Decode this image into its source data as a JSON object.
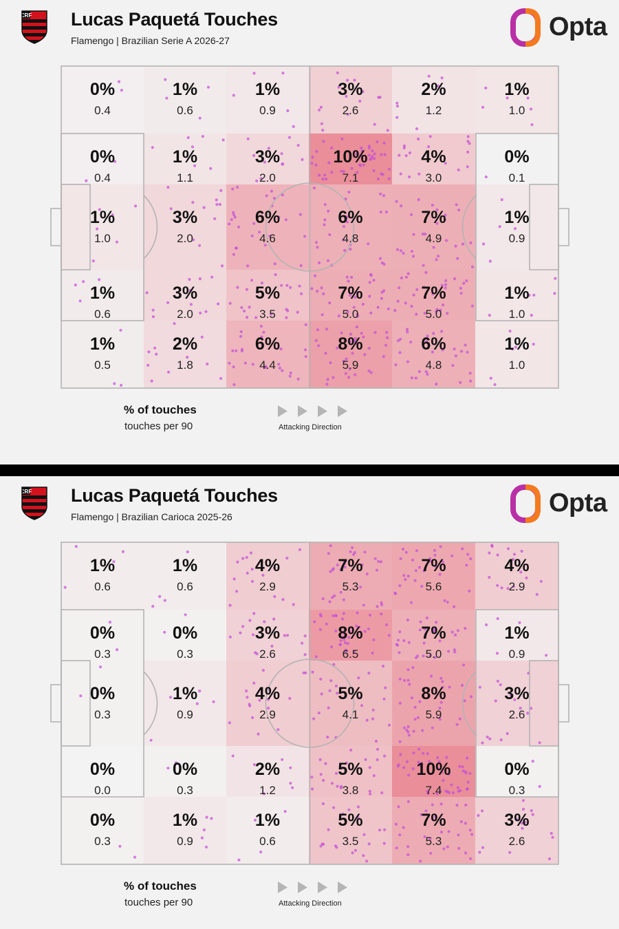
{
  "brand": {
    "logo_text": "Opta"
  },
  "legend": {
    "pct_label": "% of touches",
    "per90_label": "touches per 90",
    "direction_label": "Attacking Direction"
  },
  "colors": {
    "heat_max": "#e8727f",
    "dot": "#c34fd6",
    "pitch_line": "#b3b3b3",
    "crest_red": "#d3121d",
    "crest_black": "#111111",
    "logo_orange": "#f47a1f",
    "logo_magenta": "#b92fa6"
  },
  "panels": [
    {
      "title": "Lucas Paquetá Touches",
      "subtitle": "Flamengo | Brazilian Serie A 2026-27"
    },
    {
      "title": "Lucas Paquetá Touches",
      "subtitle": "Flamengo | Brazilian Carioca 2025-26"
    }
  ],
  "chart_data": [
    {
      "type": "heatmap",
      "title": "Lucas Paquetá Touches",
      "subtitle": "Flamengo | Brazilian Serie A 2026-27",
      "grid": "6 columns x 5 rows of pitch zones, attacking left to right",
      "pct": [
        [
          "0%",
          "1%",
          "1%",
          "3%",
          "2%",
          "1%"
        ],
        [
          "0%",
          "1%",
          "3%",
          "10%",
          "4%",
          "0%"
        ],
        [
          "1%",
          "3%",
          "6%",
          "6%",
          "7%",
          "1%"
        ],
        [
          "1%",
          "3%",
          "5%",
          "7%",
          "7%",
          "1%"
        ],
        [
          "1%",
          "2%",
          "6%",
          "8%",
          "6%",
          "1%"
        ]
      ],
      "per90": [
        [
          "0.4",
          "0.6",
          "0.9",
          "2.6",
          "1.2",
          "1.0"
        ],
        [
          "0.4",
          "1.1",
          "2.0",
          "7.1",
          "3.0",
          "0.1"
        ],
        [
          "1.0",
          "2.0",
          "4.6",
          "4.8",
          "4.9",
          "0.9"
        ],
        [
          "0.6",
          "2.0",
          "3.5",
          "5.0",
          "5.0",
          "1.0"
        ],
        [
          "0.5",
          "1.8",
          "4.4",
          "5.9",
          "4.8",
          "1.0"
        ]
      ]
    },
    {
      "type": "heatmap",
      "title": "Lucas Paquetá Touches",
      "subtitle": "Flamengo | Brazilian Carioca 2025-26",
      "grid": "6 columns x 5 rows of pitch zones, attacking left to right",
      "pct": [
        [
          "1%",
          "1%",
          "4%",
          "7%",
          "7%",
          "4%"
        ],
        [
          "0%",
          "0%",
          "3%",
          "8%",
          "7%",
          "1%"
        ],
        [
          "0%",
          "1%",
          "4%",
          "5%",
          "8%",
          "3%"
        ],
        [
          "0%",
          "0%",
          "2%",
          "5%",
          "10%",
          "0%"
        ],
        [
          "0%",
          "1%",
          "1%",
          "5%",
          "7%",
          "3%"
        ]
      ],
      "per90": [
        [
          "0.6",
          "0.6",
          "2.9",
          "5.3",
          "5.6",
          "2.9"
        ],
        [
          "0.3",
          "0.3",
          "2.6",
          "6.5",
          "5.0",
          "0.9"
        ],
        [
          "0.3",
          "0.9",
          "2.9",
          "4.1",
          "5.9",
          "2.6"
        ],
        [
          "0.0",
          "0.3",
          "1.2",
          "3.8",
          "7.4",
          "0.3"
        ],
        [
          "0.3",
          "0.9",
          "0.6",
          "3.5",
          "5.3",
          "2.6"
        ]
      ]
    }
  ]
}
